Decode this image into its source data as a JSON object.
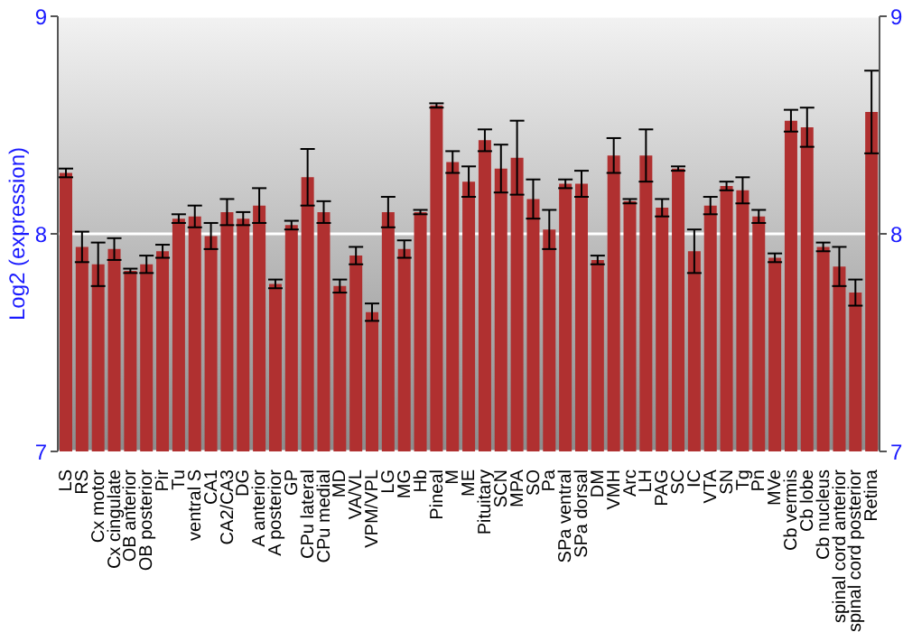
{
  "chart_data": {
    "type": "bar",
    "ylabel": "Log2 (expression)",
    "categories": [
      "LS",
      "RS",
      "Cx motor",
      "Cx cingulate",
      "OB anterior",
      "OB posterior",
      "Pir",
      "Tu",
      "ventral S",
      "CA1",
      "CA2/CA3",
      "DG",
      "A anterior",
      "A posterior",
      "GP",
      "CPu lateral",
      "CPu medial",
      "MD",
      "VA/VL",
      "VPM/VPL",
      "LG",
      "MG",
      "Hb",
      "Pineal",
      "M",
      "ME",
      "Pituitary",
      "SCN",
      "MPA",
      "SO",
      "Pa",
      "SPa ventral",
      "SPa dorsal",
      "DM",
      "VMH",
      "Arc",
      "LH",
      "PAG",
      "SC",
      "IC",
      "VTA",
      "SN",
      "Tg",
      "Pn",
      "MVe",
      "Cb vermis",
      "Cb lobe",
      "Cb nucleus",
      "spinal cord anterior",
      "spinal cord posterior",
      "Retina"
    ],
    "values": [
      8.28,
      7.94,
      7.86,
      7.93,
      7.83,
      7.86,
      7.92,
      8.07,
      8.08,
      7.99,
      8.1,
      8.07,
      8.13,
      7.77,
      8.04,
      8.26,
      8.1,
      7.76,
      7.9,
      7.64,
      8.1,
      7.93,
      8.1,
      8.59,
      8.33,
      8.24,
      8.43,
      8.3,
      8.35,
      8.16,
      8.02,
      8.23,
      8.23,
      7.88,
      8.36,
      8.15,
      8.36,
      8.12,
      8.3,
      7.92,
      8.13,
      8.22,
      8.2,
      8.08,
      7.89,
      8.52,
      8.49,
      7.94,
      7.85,
      7.73,
      8.56
    ],
    "errors": [
      0.02,
      0.07,
      0.1,
      0.05,
      0.01,
      0.04,
      0.03,
      0.02,
      0.05,
      0.06,
      0.06,
      0.03,
      0.08,
      0.02,
      0.02,
      0.13,
      0.05,
      0.03,
      0.04,
      0.04,
      0.07,
      0.04,
      0.01,
      0.01,
      0.05,
      0.07,
      0.05,
      0.11,
      0.17,
      0.09,
      0.09,
      0.02,
      0.06,
      0.02,
      0.08,
      0.01,
      0.12,
      0.04,
      0.01,
      0.1,
      0.04,
      0.02,
      0.06,
      0.03,
      0.02,
      0.05,
      0.09,
      0.02,
      0.09,
      0.06,
      0.19
    ],
    "color": "#b03030",
    "ylim": [
      7,
      9
    ],
    "yticks": [
      7,
      8,
      9
    ],
    "y2lim": [
      7,
      9
    ],
    "y2ticks": [
      7,
      8,
      9
    ],
    "grid": "y"
  }
}
